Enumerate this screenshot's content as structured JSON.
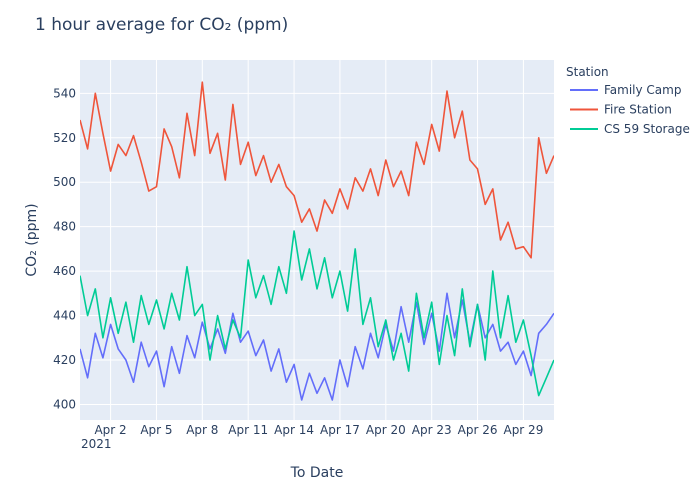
{
  "chart_data": {
    "type": "line",
    "title": "1 hour average for CO₂ (ppm)",
    "xlabel": "To Date",
    "ylabel": "CO₂ (ppm)",
    "year_label": "2021",
    "xlim": [
      "2021-03-31 00:00",
      "2021-05-01 00:00"
    ],
    "ylim": [
      393,
      555
    ],
    "yticks": [
      400,
      420,
      440,
      460,
      480,
      500,
      520,
      540
    ],
    "xticks": [
      {
        "date": "2021-04-02",
        "label": "Apr 2"
      },
      {
        "date": "2021-04-05",
        "label": "Apr 5"
      },
      {
        "date": "2021-04-08",
        "label": "Apr 8"
      },
      {
        "date": "2021-04-11",
        "label": "Apr 11"
      },
      {
        "date": "2021-04-14",
        "label": "Apr 14"
      },
      {
        "date": "2021-04-17",
        "label": "Apr 17"
      },
      {
        "date": "2021-04-20",
        "label": "Apr 20"
      },
      {
        "date": "2021-04-23",
        "label": "Apr 23"
      },
      {
        "date": "2021-04-26",
        "label": "Apr 26"
      },
      {
        "date": "2021-04-29",
        "label": "Apr 29"
      }
    ],
    "grid": true,
    "legend": {
      "title": "Station",
      "placement": "top-right"
    },
    "series": [
      {
        "name": "Family Camp",
        "color": "#636efa",
        "x": [
          "2021-03-31 00:00",
          "2021-03-31 12:00",
          "2021-04-01 00:00",
          "2021-04-01 12:00",
          "2021-04-02 00:00",
          "2021-04-02 12:00",
          "2021-04-03 00:00",
          "2021-04-03 12:00",
          "2021-04-04 00:00",
          "2021-04-04 12:00",
          "2021-04-05 00:00",
          "2021-04-05 12:00",
          "2021-04-06 00:00",
          "2021-04-06 12:00",
          "2021-04-07 00:00",
          "2021-04-07 12:00",
          "2021-04-08 00:00",
          "2021-04-08 12:00",
          "2021-04-09 00:00",
          "2021-04-09 12:00",
          "2021-04-10 00:00",
          "2021-04-10 12:00",
          "2021-04-11 00:00",
          "2021-04-11 12:00",
          "2021-04-12 00:00",
          "2021-04-12 12:00",
          "2021-04-13 00:00",
          "2021-04-13 12:00",
          "2021-04-14 00:00",
          "2021-04-14 12:00",
          "2021-04-15 00:00",
          "2021-04-15 12:00",
          "2021-04-16 00:00",
          "2021-04-16 12:00",
          "2021-04-17 00:00",
          "2021-04-17 12:00",
          "2021-04-18 00:00",
          "2021-04-18 12:00",
          "2021-04-19 00:00",
          "2021-04-19 12:00",
          "2021-04-20 00:00",
          "2021-04-20 12:00",
          "2021-04-21 00:00",
          "2021-04-21 12:00",
          "2021-04-22 00:00",
          "2021-04-22 12:00",
          "2021-04-23 00:00",
          "2021-04-23 12:00",
          "2021-04-24 00:00",
          "2021-04-24 12:00",
          "2021-04-25 00:00",
          "2021-04-25 12:00",
          "2021-04-26 00:00",
          "2021-04-26 12:00",
          "2021-04-27 00:00",
          "2021-04-27 12:00",
          "2021-04-28 00:00",
          "2021-04-28 12:00",
          "2021-04-29 00:00",
          "2021-04-29 12:00",
          "2021-04-30 00:00",
          "2021-04-30 12:00",
          "2021-05-01 00:00"
        ],
        "y": [
          425,
          412,
          432,
          421,
          436,
          425,
          420,
          410,
          428,
          417,
          424,
          408,
          426,
          414,
          431,
          421,
          437,
          425,
          434,
          423,
          441,
          428,
          433,
          422,
          429,
          415,
          425,
          410,
          418,
          402,
          414,
          405,
          412,
          402,
          420,
          408,
          426,
          416,
          432,
          421,
          436,
          424,
          444,
          428,
          446,
          427,
          441,
          424,
          450,
          430,
          447,
          428,
          445,
          430,
          436,
          424,
          428,
          418,
          424,
          413,
          432,
          436,
          441
        ]
      },
      {
        "name": "Fire Station",
        "color": "#ef553b",
        "x": [
          "2021-03-31 00:00",
          "2021-03-31 12:00",
          "2021-04-01 00:00",
          "2021-04-01 12:00",
          "2021-04-02 00:00",
          "2021-04-02 12:00",
          "2021-04-03 00:00",
          "2021-04-03 12:00",
          "2021-04-04 00:00",
          "2021-04-04 12:00",
          "2021-04-05 00:00",
          "2021-04-05 12:00",
          "2021-04-06 00:00",
          "2021-04-06 12:00",
          "2021-04-07 00:00",
          "2021-04-07 12:00",
          "2021-04-08 00:00",
          "2021-04-08 12:00",
          "2021-04-09 00:00",
          "2021-04-09 12:00",
          "2021-04-10 00:00",
          "2021-04-10 12:00",
          "2021-04-11 00:00",
          "2021-04-11 12:00",
          "2021-04-12 00:00",
          "2021-04-12 12:00",
          "2021-04-13 00:00",
          "2021-04-13 12:00",
          "2021-04-14 00:00",
          "2021-04-14 12:00",
          "2021-04-15 00:00",
          "2021-04-15 12:00",
          "2021-04-16 00:00",
          "2021-04-16 12:00",
          "2021-04-17 00:00",
          "2021-04-17 12:00",
          "2021-04-18 00:00",
          "2021-04-18 12:00",
          "2021-04-19 00:00",
          "2021-04-19 12:00",
          "2021-04-20 00:00",
          "2021-04-20 12:00",
          "2021-04-21 00:00",
          "2021-04-21 12:00",
          "2021-04-22 00:00",
          "2021-04-22 12:00",
          "2021-04-23 00:00",
          "2021-04-23 12:00",
          "2021-04-24 00:00",
          "2021-04-24 12:00",
          "2021-04-25 00:00",
          "2021-04-25 12:00",
          "2021-04-26 00:00",
          "2021-04-26 12:00",
          "2021-04-27 00:00",
          "2021-04-27 12:00",
          "2021-04-28 00:00",
          "2021-04-28 12:00",
          "2021-04-29 00:00",
          "2021-04-29 12:00",
          "2021-04-30 00:00",
          "2021-04-30 12:00",
          "2021-05-01 00:00"
        ],
        "y": [
          528,
          515,
          540,
          522,
          505,
          517,
          512,
          521,
          509,
          496,
          498,
          524,
          516,
          502,
          531,
          512,
          545,
          513,
          522,
          501,
          535,
          508,
          518,
          503,
          512,
          500,
          508,
          498,
          494,
          482,
          488,
          478,
          492,
          486,
          497,
          488,
          502,
          496,
          506,
          494,
          510,
          498,
          505,
          494,
          518,
          508,
          526,
          514,
          541,
          520,
          532,
          510,
          506,
          490,
          497,
          474,
          482,
          470,
          471,
          466,
          520,
          504,
          512
        ]
      },
      {
        "name": "CS 59 Storage",
        "color": "#00cc96",
        "x": [
          "2021-03-31 00:00",
          "2021-03-31 12:00",
          "2021-04-01 00:00",
          "2021-04-01 12:00",
          "2021-04-02 00:00",
          "2021-04-02 12:00",
          "2021-04-03 00:00",
          "2021-04-03 12:00",
          "2021-04-04 00:00",
          "2021-04-04 12:00",
          "2021-04-05 00:00",
          "2021-04-05 12:00",
          "2021-04-06 00:00",
          "2021-04-06 12:00",
          "2021-04-07 00:00",
          "2021-04-07 12:00",
          "2021-04-08 00:00",
          "2021-04-08 12:00",
          "2021-04-09 00:00",
          "2021-04-09 12:00",
          "2021-04-10 00:00",
          "2021-04-10 12:00",
          "2021-04-11 00:00",
          "2021-04-11 12:00",
          "2021-04-12 00:00",
          "2021-04-12 12:00",
          "2021-04-13 00:00",
          "2021-04-13 12:00",
          "2021-04-14 00:00",
          "2021-04-14 12:00",
          "2021-04-15 00:00",
          "2021-04-15 12:00",
          "2021-04-16 00:00",
          "2021-04-16 12:00",
          "2021-04-17 00:00",
          "2021-04-17 12:00",
          "2021-04-18 00:00",
          "2021-04-18 12:00",
          "2021-04-19 00:00",
          "2021-04-19 12:00",
          "2021-04-20 00:00",
          "2021-04-20 12:00",
          "2021-04-21 00:00",
          "2021-04-21 12:00",
          "2021-04-22 00:00",
          "2021-04-22 12:00",
          "2021-04-23 00:00",
          "2021-04-23 12:00",
          "2021-04-24 00:00",
          "2021-04-24 12:00",
          "2021-04-25 00:00",
          "2021-04-25 12:00",
          "2021-04-26 00:00",
          "2021-04-26 12:00",
          "2021-04-27 00:00",
          "2021-04-27 12:00",
          "2021-04-28 00:00",
          "2021-04-28 12:00",
          "2021-04-29 00:00",
          "2021-04-29 12:00",
          "2021-04-30 00:00",
          "2021-04-30 12:00",
          "2021-05-01 00:00"
        ],
        "y": [
          458,
          440,
          452,
          430,
          448,
          432,
          446,
          428,
          449,
          436,
          447,
          434,
          450,
          438,
          462,
          440,
          445,
          420,
          440,
          425,
          438,
          430,
          465,
          448,
          458,
          445,
          462,
          450,
          478,
          456,
          470,
          452,
          466,
          448,
          460,
          442,
          470,
          436,
          448,
          426,
          438,
          420,
          432,
          415,
          450,
          430,
          446,
          418,
          440,
          422,
          452,
          426,
          445,
          420,
          460,
          430,
          449,
          428,
          438,
          422,
          404,
          412,
          420
        ]
      }
    ]
  }
}
